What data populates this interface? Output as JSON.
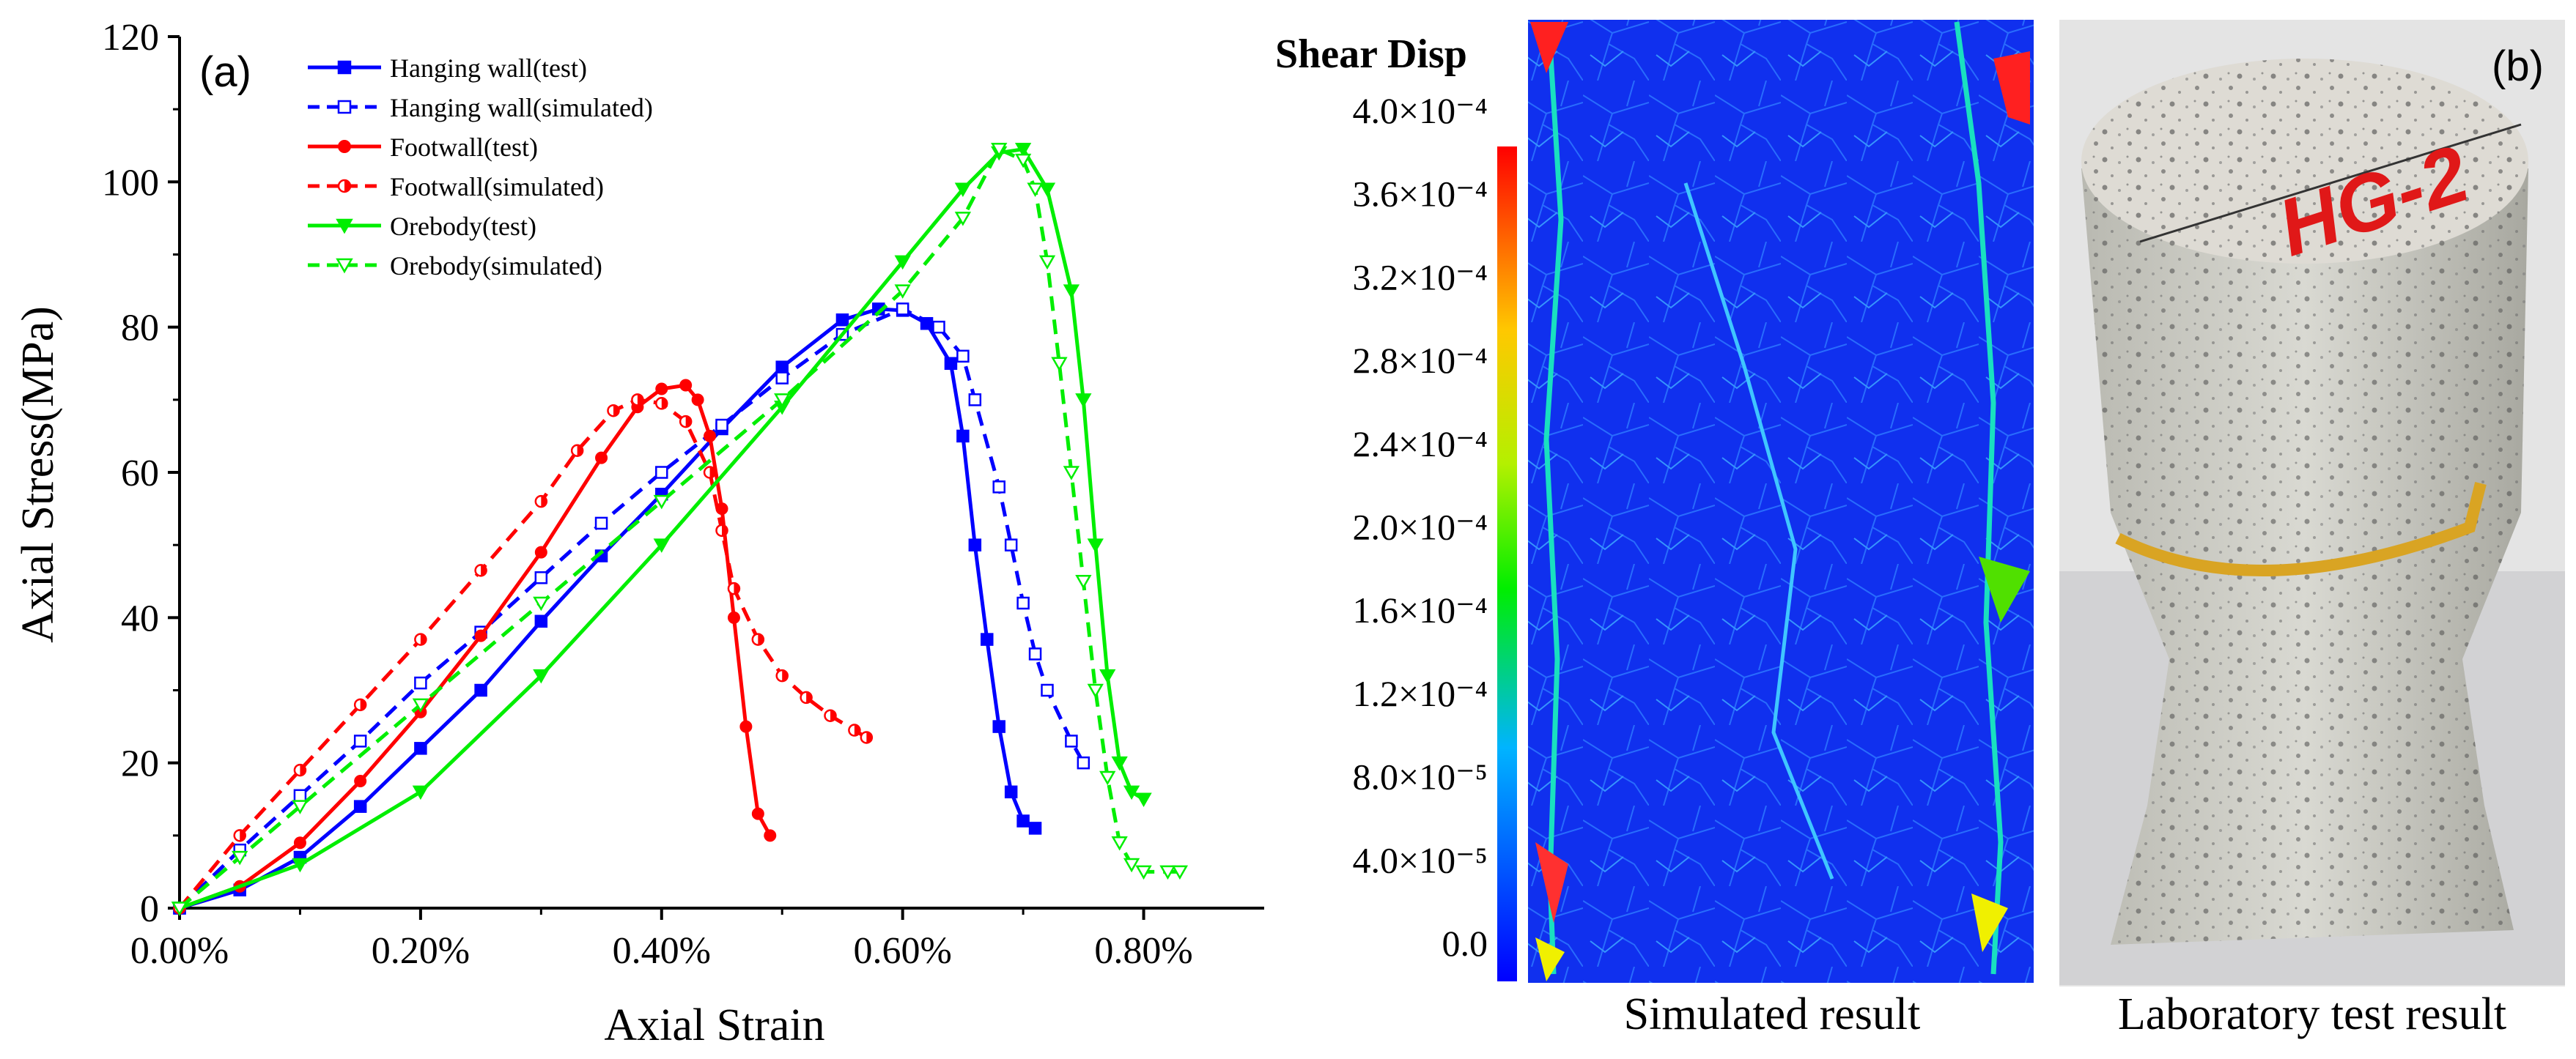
{
  "colors": {
    "hanging": "#0000ff",
    "footwall": "#ff0000",
    "orebody": "#00ee00",
    "mesh_bg": "#1030ee"
  },
  "chart_data": {
    "type": "line",
    "panel_label": "(a)",
    "xlabel": "Axial Strain",
    "ylabel": "Axial Stress(MPa)",
    "xlim": [
      0,
      0.009
    ],
    "ylim": [
      0,
      120
    ],
    "x_tick_values": [
      0,
      0.002,
      0.004,
      0.006,
      0.008
    ],
    "x_tick_labels": [
      "0.00%",
      "0.20%",
      "0.40%",
      "0.60%",
      "0.80%"
    ],
    "y_ticks": [
      0,
      20,
      40,
      60,
      80,
      100,
      120
    ],
    "series": [
      {
        "name": "Hanging wall(test)",
        "color_key": "hanging",
        "dash": false,
        "marker": "square-filled",
        "x": [
          0,
          0.0005,
          0.001,
          0.0015,
          0.002,
          0.0025,
          0.003,
          0.0035,
          0.004,
          0.0045,
          0.005,
          0.0055,
          0.0058,
          0.006,
          0.0062,
          0.0064,
          0.0065,
          0.0066,
          0.0067,
          0.0068,
          0.0069,
          0.007,
          0.0071
        ],
        "y": [
          0,
          2.5,
          7,
          14,
          22,
          30,
          39.5,
          48.5,
          57,
          66,
          74.5,
          81,
          82.5,
          82.3,
          80.5,
          75,
          65,
          50,
          37,
          25,
          16,
          12,
          11
        ]
      },
      {
        "name": "Hanging wall(simulated)",
        "color_key": "hanging",
        "dash": true,
        "marker": "square-open",
        "x": [
          0,
          0.0005,
          0.001,
          0.0015,
          0.002,
          0.0025,
          0.003,
          0.0035,
          0.004,
          0.0045,
          0.005,
          0.0055,
          0.006,
          0.0063,
          0.0065,
          0.0066,
          0.0068,
          0.0069,
          0.007,
          0.0071,
          0.0072,
          0.0074,
          0.0075
        ],
        "y": [
          0,
          8,
          15.5,
          23,
          31,
          38,
          45.5,
          53,
          60,
          66.5,
          73,
          79,
          82.5,
          80,
          76,
          70,
          58,
          50,
          42,
          35,
          30,
          23,
          20
        ]
      },
      {
        "name": "Footwall(test)",
        "color_key": "footwall",
        "dash": false,
        "marker": "circle-filled",
        "x": [
          0,
          0.0005,
          0.001,
          0.0015,
          0.002,
          0.0025,
          0.003,
          0.0035,
          0.0038,
          0.004,
          0.0042,
          0.0043,
          0.0044,
          0.0045,
          0.0046,
          0.0047,
          0.0048,
          0.0049
        ],
        "y": [
          0,
          3,
          9,
          17.5,
          27,
          37.5,
          49,
          62,
          69,
          71.5,
          72,
          70,
          65,
          55,
          40,
          25,
          13,
          10
        ]
      },
      {
        "name": "Footwall(simulated)",
        "color_key": "footwall",
        "dash": true,
        "marker": "circle-half",
        "x": [
          0,
          0.0005,
          0.001,
          0.0015,
          0.002,
          0.0025,
          0.003,
          0.0033,
          0.0036,
          0.0038,
          0.004,
          0.0042,
          0.0044,
          0.0045,
          0.0046,
          0.0048,
          0.005,
          0.0052,
          0.0054,
          0.0056,
          0.0057
        ],
        "y": [
          0,
          10,
          19,
          28,
          37,
          46.5,
          56,
          63,
          68.5,
          70,
          69.5,
          67,
          60,
          52,
          44,
          37,
          32,
          29,
          26.5,
          24.5,
          23.5
        ]
      },
      {
        "name": "Orebody(test)",
        "color_key": "orebody",
        "dash": false,
        "marker": "triangle-down-filled",
        "x": [
          0,
          0.001,
          0.002,
          0.003,
          0.004,
          0.005,
          0.006,
          0.0065,
          0.0068,
          0.007,
          0.0072,
          0.0074,
          0.0075,
          0.0076,
          0.0077,
          0.0078,
          0.0079,
          0.008
        ],
        "y": [
          0,
          6,
          16,
          32,
          50,
          69,
          89,
          99,
          104,
          104.5,
          99,
          85,
          70,
          50,
          32,
          20,
          16,
          15
        ]
      },
      {
        "name": "Orebody(simulated)",
        "color_key": "orebody",
        "dash": true,
        "marker": "triangle-down-open",
        "x": [
          0,
          0.0005,
          0.001,
          0.002,
          0.003,
          0.004,
          0.005,
          0.006,
          0.0065,
          0.0068,
          0.007,
          0.0071,
          0.0072,
          0.0073,
          0.0074,
          0.0075,
          0.0076,
          0.0077,
          0.0078,
          0.0079,
          0.008,
          0.0082,
          0.0083
        ],
        "y": [
          0,
          7,
          14,
          28,
          42,
          56,
          70,
          85,
          95,
          104.5,
          103,
          99,
          89,
          75,
          60,
          45,
          30,
          18,
          9,
          6,
          5,
          5,
          5
        ]
      }
    ]
  },
  "colorbar": {
    "title": "Shear Disp",
    "labels": [
      "4.0×10⁻⁴",
      "3.6×10⁻⁴",
      "3.2×10⁻⁴",
      "2.8×10⁻⁴",
      "2.4×10⁻⁴",
      "2.0×10⁻⁴",
      "1.6×10⁻⁴",
      "1.2×10⁻⁴",
      "8.0×10⁻⁵",
      "4.0×10⁻⁵",
      "0.0"
    ],
    "min_value": 0,
    "max_value": 0.0004
  },
  "panel_b": {
    "panel_label": "(b)",
    "sim_caption": "Simulated result",
    "lab_caption": "Laboratory test result",
    "specimen_text": "HG-2"
  }
}
